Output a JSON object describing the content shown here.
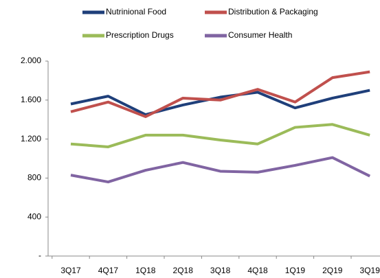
{
  "chart_data": {
    "type": "line",
    "categories": [
      "3Q17",
      "4Q17",
      "1Q18",
      "2Q18",
      "3Q18",
      "4Q18",
      "1Q19",
      "2Q19",
      "3Q19"
    ],
    "series": [
      {
        "name": "Nutrinional Food",
        "color": "#1f3f7a",
        "values": [
          1560,
          1640,
          1450,
          1550,
          1630,
          1680,
          1520,
          1620,
          1700
        ]
      },
      {
        "name": "Distribution & Packaging",
        "color": "#c0504d",
        "values": [
          1480,
          1580,
          1430,
          1620,
          1600,
          1710,
          1580,
          1830,
          1890
        ]
      },
      {
        "name": "Prescription Drugs",
        "color": "#9bbb59",
        "values": [
          1150,
          1120,
          1240,
          1240,
          1190,
          1150,
          1320,
          1350,
          1240
        ]
      },
      {
        "name": "Consumer Health",
        "color": "#8064a2",
        "values": [
          830,
          760,
          880,
          960,
          870,
          860,
          930,
          1010,
          820
        ]
      }
    ],
    "ylim": [
      0,
      2000
    ],
    "yticks": [
      {
        "value": 0,
        "label": "-"
      },
      400,
      800,
      {
        "value": 1200,
        "label": "1.200"
      },
      {
        "value": 1600,
        "label": "1.600"
      },
      {
        "value": 2000,
        "label": "2.000"
      }
    ],
    "grid": false
  }
}
